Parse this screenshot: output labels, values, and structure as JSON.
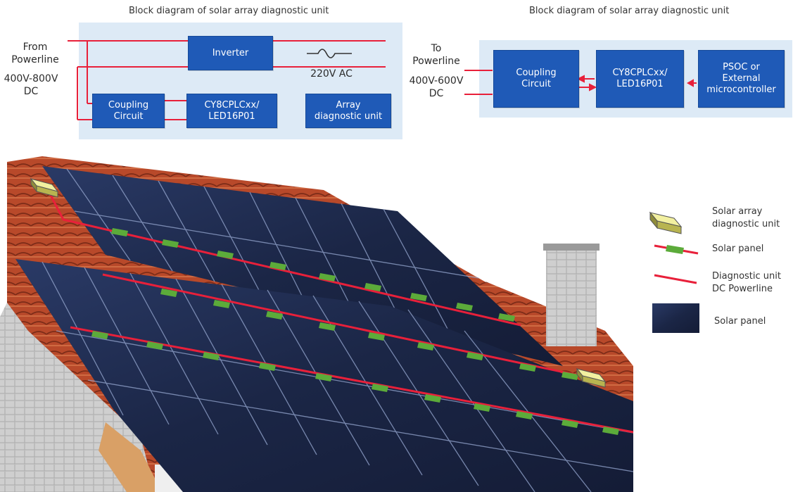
{
  "diagram_left": {
    "title": "Block diagram of solar array diagnostic unit",
    "from_label": "From\nPowerline",
    "voltage_label": "400V-800V\nDC",
    "ac_label": "220V AC",
    "blocks": {
      "inverter": "Inverter",
      "coupling": "Coupling\nCircuit",
      "plc": "CY8CPLCxx/\nLED16P01",
      "diagnostic": "Array\ndiagnostic unit"
    }
  },
  "diagram_right": {
    "title": "Block diagram of solar array diagnostic unit",
    "to_label": "To\nPowerline",
    "voltage_label": "400V-600V\nDC",
    "blocks": {
      "coupling": "Coupling\nCircuit",
      "plc": "CY8CPLCxx/\nLED16P01",
      "mcu": "PSOC or\nExternal\nmicrocontroller"
    }
  },
  "legend": {
    "diagnostic_unit": "Solar array\ndiagnostic unit",
    "panel_segment": "Solar panel",
    "powerline": "Diagnostic unit\nDC Powerline",
    "panel_swatch": "Solar panel"
  },
  "colors": {
    "block_blue": "#1f5ab7",
    "panel_bg": "#ddeaf6",
    "wire_red": "#e8203a",
    "segment_green": "#5cab3a",
    "unit_yellow": "#d8d66a",
    "solar_navy": "#1c2744",
    "roof_tile": "#b8492a"
  }
}
